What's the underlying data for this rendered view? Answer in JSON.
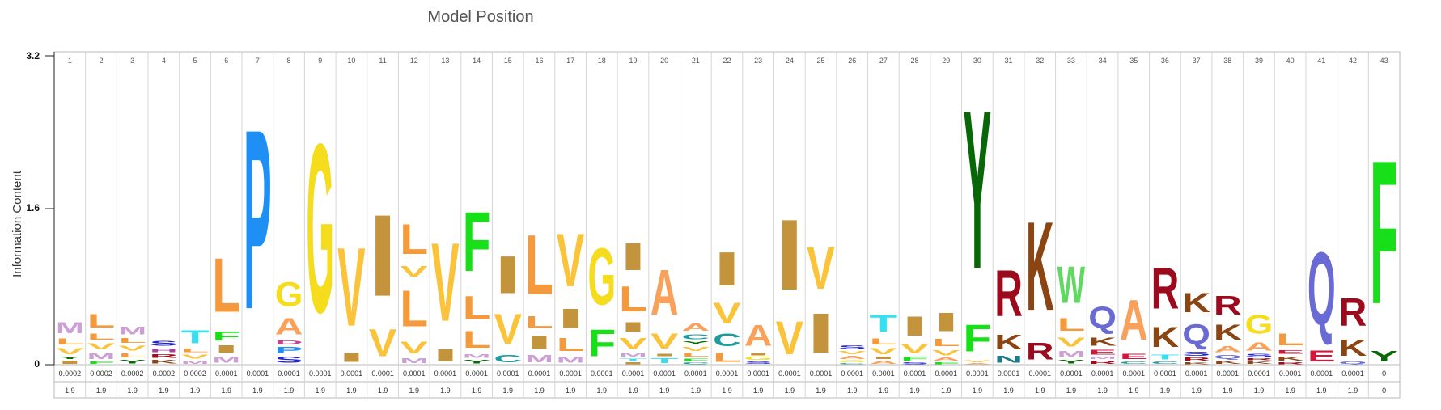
{
  "title": "Model Position",
  "chart_data": {
    "type": "sequence-logo",
    "title": "Model Position",
    "ylabel": "Information Content",
    "ylim": [
      0,
      3.2
    ],
    "yticks": [
      "0",
      "1.6",
      "3.2"
    ],
    "grid": false,
    "colors": {
      "A": "#f9a05a",
      "C": "#1c9c9c",
      "D": "#ce3e90",
      "E": "#d4163d",
      "F": "#18e018",
      "G": "#f5dc1c",
      "H": "#a6409c",
      "I": "#c4943d",
      "K": "#8b4513",
      "L": "#f59a3c",
      "M": "#cca0d4",
      "N": "#1c7c8c",
      "P": "#1e90f5",
      "Q": "#6a6ad4",
      "R": "#9c0a1e",
      "S": "#2121d4",
      "T": "#36e0f0",
      "V": "#fac33a",
      "W": "#62d862",
      "Y": "#086808"
    },
    "positions": [
      "1",
      "2",
      "3",
      "4",
      "5",
      "6",
      "7",
      "8",
      "9",
      "10",
      "11",
      "12",
      "13",
      "14",
      "15",
      "16",
      "17",
      "18",
      "19",
      "20",
      "21",
      "22",
      "23",
      "24",
      "25",
      "26",
      "27",
      "28",
      "29",
      "30",
      "31",
      "32",
      "33",
      "34",
      "35",
      "36",
      "37",
      "38",
      "39",
      "40",
      "41",
      "42",
      "43"
    ],
    "stacks": [
      [
        [
          "I",
          0.05
        ],
        [
          "Y",
          0.04
        ],
        [
          "V",
          0.1
        ],
        [
          "L",
          0.1
        ],
        [
          "M",
          0.18
        ]
      ],
      [
        [
          "F",
          0.04
        ],
        [
          "M",
          0.1
        ],
        [
          "V",
          0.1
        ],
        [
          "L",
          0.1
        ],
        [
          "L",
          0.23
        ]
      ],
      [
        [
          "Y",
          0.06
        ],
        [
          "L",
          0.07
        ],
        [
          "V",
          0.08
        ],
        [
          "L",
          0.08
        ],
        [
          "M",
          0.13
        ]
      ],
      [
        [
          "K",
          0.06
        ],
        [
          "R",
          0.06
        ],
        [
          "H",
          0.06
        ],
        [
          "S",
          0.08
        ]
      ],
      [
        [
          "M",
          0.05
        ],
        [
          "V",
          0.07
        ],
        [
          "L",
          0.06
        ],
        [
          "T",
          0.22
        ]
      ],
      [
        [
          "M",
          0.1
        ],
        [
          "I",
          0.12
        ],
        [
          "F",
          0.15
        ],
        [
          "L",
          0.9
        ]
      ],
      [
        [
          "P",
          2.98
        ]
      ],
      [
        [
          "S",
          0.1
        ],
        [
          "P",
          0.1
        ],
        [
          "D",
          0.06
        ],
        [
          "A",
          0.27
        ],
        [
          "G",
          0.4
        ]
      ],
      [
        [
          "G",
          2.8
        ]
      ],
      [
        [
          "I",
          0.15
        ],
        [
          "V",
          1.3
        ]
      ],
      [
        [
          "V",
          0.45
        ],
        [
          "I",
          1.35
        ]
      ],
      [
        [
          "M",
          0.08
        ],
        [
          "V",
          0.2
        ],
        [
          "L",
          0.6
        ],
        [
          "V",
          0.17
        ],
        [
          "L",
          0.5
        ]
      ],
      [
        [
          "I",
          0.2
        ],
        [
          "V",
          1.3
        ]
      ],
      [
        [
          "Y",
          0.06
        ],
        [
          "M",
          0.06
        ],
        [
          "L",
          0.28
        ],
        [
          "L",
          0.38
        ],
        [
          "F",
          0.98
        ]
      ],
      [
        [
          "C",
          0.12
        ],
        [
          "V",
          0.5
        ],
        [
          "I",
          0.62
        ]
      ],
      [
        [
          "M",
          0.12
        ],
        [
          "I",
          0.22
        ],
        [
          "L",
          0.2
        ],
        [
          "L",
          0.98
        ]
      ],
      [
        [
          "M",
          0.1
        ],
        [
          "L",
          0.22
        ],
        [
          "I",
          0.32
        ],
        [
          "V",
          0.88
        ]
      ],
      [
        [
          "F",
          0.44
        ],
        [
          "G",
          0.94
        ]
      ],
      [
        [
          "I",
          0.03
        ],
        [
          "T",
          0.04
        ],
        [
          "M",
          0.06
        ],
        [
          "V",
          0.18
        ],
        [
          "I",
          0.16
        ],
        [
          "L",
          0.42
        ],
        [
          "I",
          0.45
        ]
      ],
      [
        [
          "T",
          0.08
        ],
        [
          "I",
          0.04
        ],
        [
          "V",
          0.25
        ],
        [
          "A",
          0.75
        ]
      ],
      [
        [
          "C",
          0.03
        ],
        [
          "F",
          0.04
        ],
        [
          "L",
          0.06
        ],
        [
          "V",
          0.07
        ],
        [
          "Y",
          0.05
        ],
        [
          "C",
          0.08
        ],
        [
          "A",
          0.12
        ]
      ],
      [
        [
          "L",
          0.15
        ],
        [
          "C",
          0.21
        ],
        [
          "V",
          0.35
        ],
        [
          "I",
          0.56
        ]
      ],
      [
        [
          "S",
          0.04
        ],
        [
          "G",
          0.05
        ],
        [
          "I",
          0.04
        ],
        [
          "A",
          0.35
        ]
      ],
      [
        [
          "V",
          0.55
        ],
        [
          "I",
          1.17
        ]
      ],
      [
        [
          "I",
          0.65
        ],
        [
          "V",
          0.7
        ]
      ],
      [
        [
          "C",
          0.02
        ],
        [
          "G",
          0.03
        ],
        [
          "A",
          0.05
        ],
        [
          "V",
          0.05
        ],
        [
          "S",
          0.06
        ]
      ],
      [
        [
          "A",
          0.05
        ],
        [
          "I",
          0.04
        ],
        [
          "V",
          0.1
        ],
        [
          "L",
          0.1
        ],
        [
          "T",
          0.28
        ]
      ],
      [
        [
          "S",
          0.03
        ],
        [
          "F",
          0.06
        ],
        [
          "V",
          0.15
        ],
        [
          "I",
          0.32
        ]
      ],
      [
        [
          "F",
          0.03
        ],
        [
          "A",
          0.05
        ],
        [
          "V",
          0.09
        ],
        [
          "L",
          0.12
        ],
        [
          "I",
          0.3
        ]
      ],
      [
        [
          "A",
          0.02
        ],
        [
          "V",
          0.03
        ],
        [
          "F",
          0.44
        ],
        [
          "Y",
          2.62
        ]
      ],
      [
        [
          "N",
          0.11
        ],
        [
          "K",
          0.24
        ],
        [
          "R",
          0.77
        ]
      ],
      [
        [
          "R",
          0.28
        ],
        [
          "K",
          1.47
        ]
      ],
      [
        [
          "Y",
          0.06
        ],
        [
          "M",
          0.1
        ],
        [
          "V",
          0.15
        ],
        [
          "L",
          0.21
        ],
        [
          "W",
          0.61
        ]
      ],
      [
        [
          "R",
          0.05
        ],
        [
          "M",
          0.04
        ],
        [
          "E",
          0.08
        ],
        [
          "K",
          0.14
        ],
        [
          "Q",
          0.36
        ]
      ],
      [
        [
          "C",
          0.04
        ],
        [
          "E",
          0.09
        ],
        [
          "A",
          0.66
        ]
      ],
      [
        [
          "C",
          0.04
        ],
        [
          "T",
          0.08
        ],
        [
          "K",
          0.33
        ],
        [
          "R",
          0.68
        ]
      ],
      [
        [
          "K",
          0.03
        ],
        [
          "R",
          0.05
        ],
        [
          "S",
          0.07
        ],
        [
          "Q",
          0.33
        ],
        [
          "K",
          0.32
        ]
      ],
      [
        [
          "K",
          0.05
        ],
        [
          "Q",
          0.06
        ],
        [
          "A",
          0.1
        ],
        [
          "K",
          0.25
        ],
        [
          "R",
          0.31
        ]
      ],
      [
        [
          "K",
          0.04
        ],
        [
          "R",
          0.03
        ],
        [
          "S",
          0.05
        ],
        [
          "A",
          0.14
        ],
        [
          "G",
          0.31
        ]
      ],
      [
        [
          "R",
          0.03
        ],
        [
          "K",
          0.07
        ],
        [
          "E",
          0.06
        ],
        [
          "L",
          0.2
        ]
      ],
      [
        [
          "E",
          0.18
        ],
        [
          "Q",
          1.2
        ]
      ],
      [
        [
          "Q",
          0.04
        ],
        [
          "K",
          0.27
        ],
        [
          "R",
          0.46
        ]
      ],
      [
        [
          "Y",
          0.17
        ],
        [
          "F",
          2.38
        ]
      ]
    ],
    "row1": [
      "0.0002",
      "0.0002",
      "0.0002",
      "0.0002",
      "0.0002",
      "0.0001",
      "0.0001",
      "0.0001",
      "0.0001",
      "0.0001",
      "0.0001",
      "0.0001",
      "0.0001",
      "0.0001",
      "0.0001",
      "0.0001",
      "0.0001",
      "0.0001",
      "0.0001",
      "0.0001",
      "0.0001",
      "0.0001",
      "0.0001",
      "0.0001",
      "0.0001",
      "0.0001",
      "0.0001",
      "0.0001",
      "0.0001",
      "0.0001",
      "0.0001",
      "0.0001",
      "0.0001",
      "0.0001",
      "0.0001",
      "0.0001",
      "0.0001",
      "0.0001",
      "0.0001",
      "0.0001",
      "0.0001",
      "0.0001",
      "0"
    ],
    "row2": [
      "1.9",
      "1.9",
      "1.9",
      "1.9",
      "1.9",
      "1.9",
      "1.9",
      "1.9",
      "1.9",
      "1.9",
      "1.9",
      "1.9",
      "1.9",
      "1.9",
      "1.9",
      "1.9",
      "1.9",
      "1.9",
      "1.9",
      "1.9",
      "1.9",
      "1.9",
      "1.9",
      "1.9",
      "1.9",
      "1.9",
      "1.9",
      "1.9",
      "1.9",
      "1.9",
      "1.9",
      "1.9",
      "1.9",
      "1.9",
      "1.9",
      "1.9",
      "1.9",
      "1.9",
      "1.9",
      "1.9",
      "1.9",
      "1.9",
      "0"
    ]
  }
}
